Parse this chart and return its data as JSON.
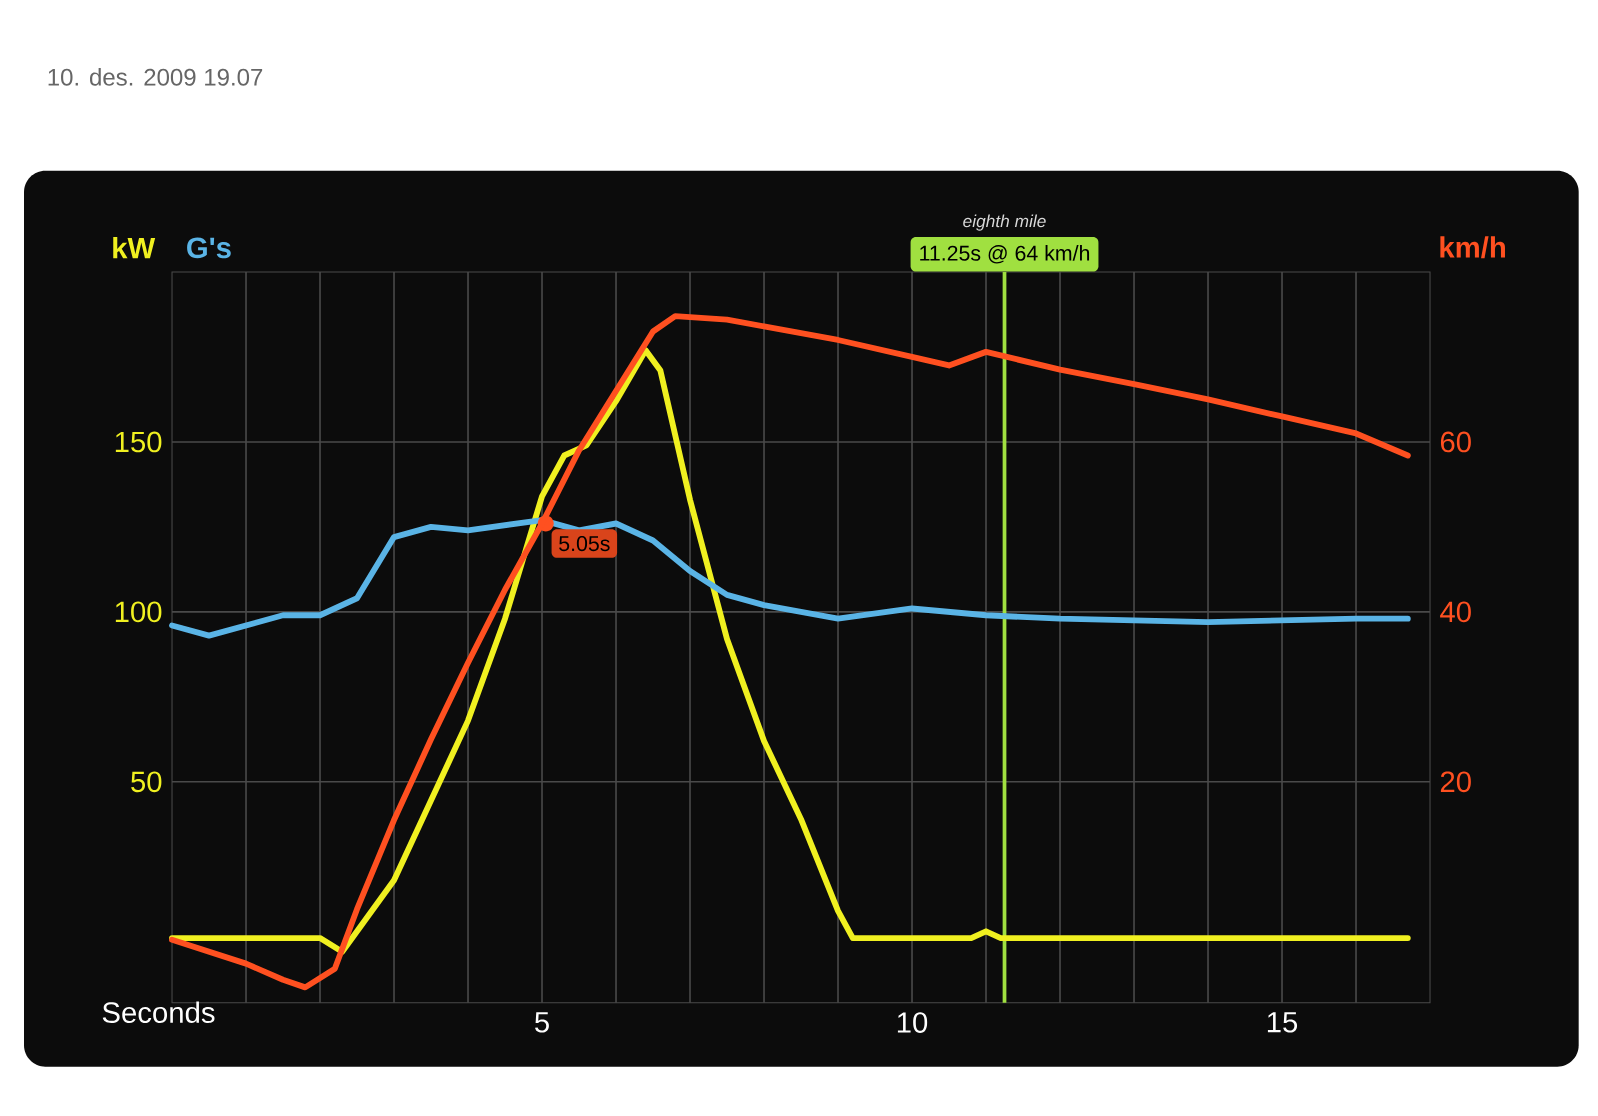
{
  "chart_data": {
    "type": "line",
    "subtitle": "10. des. 2009 19.07",
    "xlabel": "Seconds",
    "xlim": [
      0,
      17
    ],
    "xticks": [
      {
        "value": 1,
        "label": null
      },
      {
        "value": 2,
        "label": null
      },
      {
        "value": 3,
        "label": null
      },
      {
        "value": 4,
        "label": null
      },
      5,
      {
        "value": 6,
        "label": null
      },
      {
        "value": 7,
        "label": null
      },
      {
        "value": 8,
        "label": null
      },
      {
        "value": 9,
        "label": null
      },
      10,
      {
        "value": 11,
        "label": null
      },
      {
        "value": 12,
        "label": null
      },
      {
        "value": 13,
        "label": null
      },
      {
        "value": 14,
        "label": null
      },
      15,
      {
        "value": 16,
        "label": null
      }
    ],
    "ylim": [
      -15,
      200
    ],
    "yticks": [
      50,
      100,
      150
    ],
    "y2lim": [
      -6,
      80
    ],
    "y2ticks": [
      20,
      40,
      60
    ],
    "grid": true,
    "marker": "none",
    "line_style": "solid",
    "series": [
      {
        "name": "kW",
        "color": "#f0f020",
        "x": [
          0,
          1,
          2,
          2.3,
          3,
          4,
          4.5,
          5,
          5.3,
          5.6,
          6,
          6.4,
          6.6,
          7,
          7.5,
          8,
          8.5,
          9,
          9.2,
          10,
          10.8,
          11,
          11.2,
          12,
          14,
          16,
          16.7
        ],
        "values": [
          4,
          4,
          4,
          0,
          21,
          68,
          98,
          134,
          146,
          149,
          162,
          177,
          171,
          133,
          92,
          62,
          39,
          12,
          4,
          4,
          4,
          6,
          4,
          4,
          4,
          4,
          4
        ]
      },
      {
        "name": "G's",
        "color": "#5ab4e6",
        "x": [
          0,
          0.5,
          1,
          1.5,
          2,
          2.5,
          3,
          3.5,
          4,
          5,
          5.5,
          6,
          6.5,
          7,
          7.5,
          8,
          9,
          10,
          11,
          12,
          14,
          16,
          16.7
        ],
        "values": [
          96,
          93,
          96,
          99,
          99,
          104,
          122,
          125,
          124,
          127,
          124,
          126,
          121,
          112,
          105,
          102,
          98,
          101,
          99,
          98,
          97,
          98,
          98
        ]
      },
      {
        "name": "km/h",
        "color": "#ff5020",
        "axis": "y2",
        "x": [
          0,
          1,
          1.5,
          1.8,
          2.2,
          2.5,
          3,
          3.5,
          4,
          4.5,
          5,
          5.5,
          6,
          6.5,
          6.8,
          7.5,
          8,
          9,
          10,
          10.5,
          11,
          12,
          13,
          14,
          15,
          16,
          16.7
        ],
        "values": [
          1.4,
          -1.4,
          -3.3,
          -4.2,
          -2,
          5,
          15.5,
          25,
          34,
          42.6,
          50.4,
          59,
          66,
          73,
          74.8,
          74.4,
          73.6,
          72,
          70,
          69,
          70.6,
          68.5,
          66.8,
          65,
          63,
          61,
          58.4
        ]
      }
    ],
    "ref_lines": [
      {
        "axis": "x",
        "value": 11.25,
        "label": "11.25s @ 64 km/h",
        "color": "#a0e040"
      }
    ],
    "annotations": [
      "eighth mile",
      {
        "text": "5.05s",
        "x": 5.05,
        "y": 126
      }
    ]
  }
}
